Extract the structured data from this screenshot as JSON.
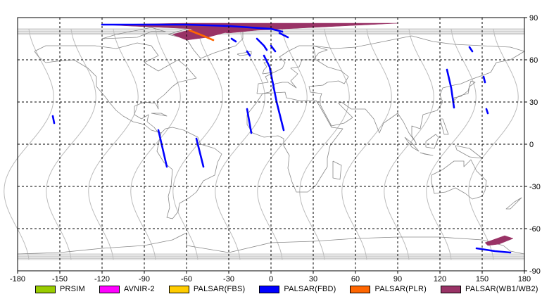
{
  "map": {
    "x_ticks": [
      "-180",
      "-150",
      "-120",
      "-90",
      "-60",
      "-30",
      "0",
      "30",
      "60",
      "90",
      "120",
      "150",
      "180"
    ],
    "y_ticks": [
      "90",
      "60",
      "30",
      "0",
      "-30",
      "-60",
      "-90"
    ],
    "lon_range": [
      -180,
      180
    ],
    "lat_range": [
      -90,
      90
    ],
    "grid": "dashed",
    "colors": {
      "frame": "#000000",
      "grid": "#000000",
      "coast": "#888888",
      "orbit": "#bbbbbb"
    }
  },
  "legend": [
    {
      "label": "PRSIM",
      "color": "#99cc00"
    },
    {
      "label": "AVNIR-2",
      "color": "#ff00ff"
    },
    {
      "label": "PALSAR(FBS)",
      "color": "#ffcc00"
    },
    {
      "label": "PALSAR(FBD)",
      "color": "#0000ff"
    },
    {
      "label": "PALSAR(PLR)",
      "color": "#ff6600"
    },
    {
      "label": "PALSAR(WB1/WB2)",
      "color": "#993366"
    }
  ],
  "strips": [
    {
      "sensor": "PALSAR(FBD)",
      "path": [
        [
          -155,
          20
        ],
        [
          -154,
          15
        ]
      ]
    },
    {
      "sensor": "PALSAR(FBD)",
      "path": [
        [
          -80,
          10
        ],
        [
          -74,
          -16
        ]
      ]
    },
    {
      "sensor": "PALSAR(FBD)",
      "path": [
        [
          -53,
          4
        ],
        [
          -48,
          -16
        ]
      ]
    },
    {
      "sensor": "PALSAR(FBD)",
      "path": [
        [
          -17,
          25
        ],
        [
          -14,
          8
        ]
      ]
    },
    {
      "sensor": "PALSAR(FBD)",
      "path": [
        [
          -5,
          63
        ],
        [
          -1,
          55
        ],
        [
          1,
          45
        ],
        [
          4,
          30
        ],
        [
          9,
          10
        ]
      ]
    },
    {
      "sensor": "PALSAR(FBD)",
      "path": [
        [
          -10,
          75
        ],
        [
          -5,
          70
        ],
        [
          -3,
          67
        ]
      ]
    },
    {
      "sensor": "PALSAR(FBD)",
      "path": [
        [
          0,
          70
        ],
        [
          3,
          66
        ]
      ]
    },
    {
      "sensor": "PALSAR(FBD)",
      "path": [
        [
          -17,
          66
        ],
        [
          -15,
          63
        ]
      ]
    },
    {
      "sensor": "PALSAR(FBD)",
      "path": [
        [
          -120,
          85
        ],
        [
          -60,
          85
        ],
        [
          -30,
          84
        ],
        [
          0,
          82
        ],
        [
          8,
          80
        ]
      ]
    },
    {
      "sensor": "PALSAR(FBD)",
      "path": [
        [
          6,
          79
        ],
        [
          12,
          76
        ]
      ]
    },
    {
      "sensor": "PALSAR(FBD)",
      "path": [
        [
          -28,
          75
        ],
        [
          -25,
          73
        ]
      ]
    },
    {
      "sensor": "PALSAR(FBD)",
      "path": [
        [
          125,
          53
        ],
        [
          128,
          40
        ],
        [
          130,
          26
        ]
      ]
    },
    {
      "sensor": "PALSAR(FBD)",
      "path": [
        [
          141,
          69
        ],
        [
          143,
          66
        ]
      ]
    },
    {
      "sensor": "PALSAR(FBD)",
      "path": [
        [
          151,
          48
        ],
        [
          152,
          44
        ]
      ]
    },
    {
      "sensor": "PALSAR(FBD)",
      "path": [
        [
          153,
          25
        ],
        [
          154,
          22
        ]
      ]
    },
    {
      "sensor": "PALSAR(FBD)",
      "path": [
        [
          146,
          -74
        ],
        [
          159,
          -76
        ],
        [
          170,
          -77
        ]
      ]
    },
    {
      "sensor": "PALSAR(PLR)",
      "path": [
        [
          -58,
          81
        ],
        [
          -48,
          77
        ],
        [
          -41,
          74
        ]
      ]
    }
  ],
  "wb_regions": [
    {
      "sensor": "PALSAR(WB1/WB2)",
      "polygon": [
        [
          -120,
          85
        ],
        [
          -60,
          86
        ],
        [
          -20,
          86
        ],
        [
          90,
          86
        ],
        [
          -10,
          81
        ],
        [
          -30,
          79
        ],
        [
          -55,
          82
        ],
        [
          -100,
          84
        ]
      ]
    },
    {
      "sensor": "PALSAR(WB1/WB2)",
      "polygon": [
        [
          -70,
          78
        ],
        [
          -55,
          82
        ],
        [
          -30,
          80
        ],
        [
          -45,
          76
        ],
        [
          -60,
          74
        ]
      ]
    },
    {
      "sensor": "PALSAR(WB1/WB2)",
      "polygon": [
        [
          152,
          -70
        ],
        [
          166,
          -65
        ],
        [
          172,
          -67
        ],
        [
          162,
          -71
        ],
        [
          154,
          -72
        ]
      ]
    }
  ]
}
